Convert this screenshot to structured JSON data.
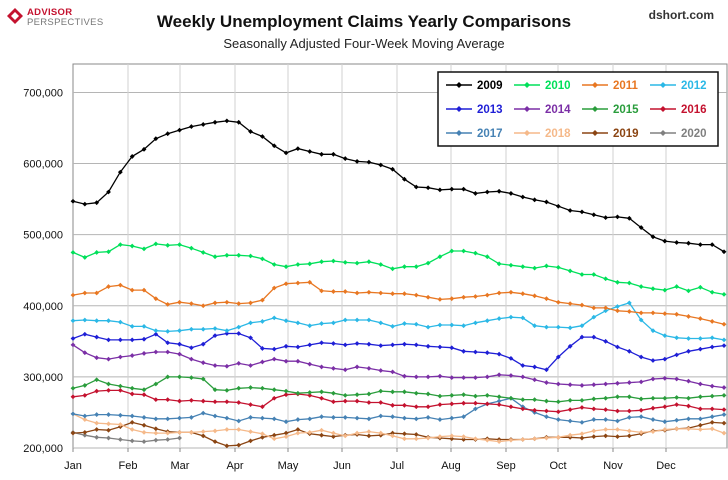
{
  "header": {
    "brand_line1": "ADVISOR",
    "brand_line2": "PERSPECTIVES",
    "site": "dshort.com"
  },
  "chart_data": {
    "type": "line",
    "title": "Weekly Unemployment Claims Yearly Comparisons",
    "subtitle": "Seasonally Adjusted Four-Week Moving Average",
    "xlabel": "",
    "ylabel": "",
    "x_ticks": [
      "Jan",
      "Feb",
      "Mar",
      "Apr",
      "May",
      "Jun",
      "Jul",
      "Aug",
      "Sep",
      "Oct",
      "Nov",
      "Dec"
    ],
    "ylim": [
      200000,
      740000
    ],
    "y_ticks": [
      200000,
      300000,
      400000,
      500000,
      600000,
      700000
    ],
    "y_tick_labels": [
      "200,000",
      "300,000",
      "400,000",
      "500,000",
      "600,000",
      "700,000"
    ],
    "grid": true,
    "legend_position": "top-right",
    "series": [
      {
        "name": "2009",
        "color": "#000000",
        "marker": "diamond",
        "values": [
          547000,
          543000,
          545000,
          560000,
          588000,
          610000,
          620000,
          635000,
          642000,
          647000,
          652000,
          655000,
          658000,
          660000,
          658000,
          645000,
          638000,
          625000,
          615000,
          621000,
          617000,
          613000,
          613000,
          607000,
          603000,
          602000,
          598000,
          592000,
          578000,
          567000,
          566000,
          563000,
          564000,
          564000,
          558000,
          560000,
          561000,
          558000,
          553000,
          549000,
          546000,
          540000,
          534000,
          532000,
          528000,
          524000,
          525000,
          523000,
          510000,
          497000,
          491000,
          489000,
          488000,
          486000,
          486000,
          476000
        ]
      },
      {
        "name": "2010",
        "color": "#00e05a",
        "marker": "diamond",
        "values": [
          475000,
          468000,
          475000,
          476000,
          486000,
          484000,
          480000,
          487000,
          485000,
          486000,
          481000,
          475000,
          469000,
          471000,
          471000,
          470000,
          466000,
          458000,
          455000,
          458000,
          459000,
          462000,
          463000,
          461000,
          460000,
          462000,
          458000,
          452000,
          455000,
          455000,
          460000,
          469000,
          477000,
          477000,
          474000,
          469000,
          459000,
          457000,
          455000,
          453000,
          456000,
          454000,
          449000,
          444000,
          444000,
          438000,
          433000,
          432000,
          427000,
          424000,
          422000,
          427000,
          421000,
          426000,
          419000,
          416000
        ]
      },
      {
        "name": "2011",
        "color": "#e87722",
        "marker": "diamond",
        "values": [
          415000,
          418000,
          418000,
          427000,
          429000,
          422000,
          422000,
          410000,
          402000,
          405000,
          403000,
          400000,
          404000,
          405000,
          403000,
          404000,
          408000,
          425000,
          431000,
          432000,
          433000,
          421000,
          420000,
          420000,
          418000,
          419000,
          418000,
          417000,
          417000,
          415000,
          412000,
          409000,
          410000,
          412000,
          413000,
          415000,
          418000,
          419000,
          417000,
          414000,
          410000,
          405000,
          403000,
          401000,
          397000,
          397000,
          393000,
          392000,
          390000,
          390000,
          389000,
          388000,
          385000,
          382000,
          378000,
          374000
        ]
      },
      {
        "name": "2012",
        "color": "#2bb8e6",
        "marker": "diamond",
        "values": [
          379000,
          380000,
          379000,
          379000,
          377000,
          371000,
          371000,
          365000,
          364000,
          365000,
          367000,
          367000,
          368000,
          365000,
          370000,
          376000,
          378000,
          383000,
          379000,
          376000,
          372000,
          375000,
          376000,
          380000,
          380000,
          380000,
          376000,
          371000,
          375000,
          374000,
          370000,
          373000,
          373000,
          372000,
          376000,
          379000,
          382000,
          384000,
          383000,
          372000,
          370000,
          370000,
          369000,
          372000,
          384000,
          393000,
          399000,
          404000,
          380000,
          365000,
          358000,
          355000,
          354000,
          354000,
          355000,
          352000
        ]
      },
      {
        "name": "2013",
        "color": "#1f1fd6",
        "marker": "diamond",
        "values": [
          354000,
          360000,
          356000,
          352000,
          352000,
          352000,
          353000,
          360000,
          348000,
          346000,
          341000,
          346000,
          358000,
          361000,
          361000,
          355000,
          340000,
          339000,
          343000,
          342000,
          345000,
          348000,
          347000,
          345000,
          347000,
          346000,
          344000,
          345000,
          346000,
          345000,
          343000,
          342000,
          341000,
          336000,
          335000,
          334000,
          332000,
          326000,
          316000,
          314000,
          310000,
          328000,
          343000,
          356000,
          356000,
          350000,
          342000,
          336000,
          328000,
          323000,
          325000,
          331000,
          336000,
          339000,
          342000,
          344000
        ]
      },
      {
        "name": "2014",
        "color": "#7b2fa6",
        "marker": "diamond",
        "values": [
          345000,
          334000,
          327000,
          325000,
          328000,
          330000,
          333000,
          335000,
          335000,
          332000,
          325000,
          320000,
          316000,
          315000,
          319000,
          316000,
          321000,
          325000,
          322000,
          322000,
          318000,
          314000,
          312000,
          310000,
          314000,
          312000,
          309000,
          307000,
          301000,
          300000,
          300000,
          301000,
          299000,
          299000,
          299000,
          300000,
          303000,
          302000,
          300000,
          296000,
          292000,
          290000,
          289000,
          288000,
          289000,
          290000,
          291000,
          292000,
          293000,
          297000,
          298000,
          297000,
          294000,
          290000,
          287000,
          285000
        ]
      },
      {
        "name": "2015",
        "color": "#2a9d3c",
        "marker": "diamond",
        "values": [
          284000,
          288000,
          296000,
          290000,
          287000,
          284000,
          282000,
          290000,
          300000,
          300000,
          299000,
          297000,
          282000,
          281000,
          284000,
          285000,
          284000,
          282000,
          280000,
          277000,
          278000,
          279000,
          277000,
          274000,
          275000,
          276000,
          280000,
          279000,
          279000,
          277000,
          276000,
          273000,
          274000,
          275000,
          273000,
          274000,
          272000,
          270000,
          268000,
          268000,
          266000,
          265000,
          267000,
          267000,
          269000,
          270000,
          272000,
          272000,
          269000,
          270000,
          270000,
          271000,
          270000,
          272000,
          273000,
          274000
        ]
      },
      {
        "name": "2016",
        "color": "#c4122f",
        "marker": "diamond",
        "values": [
          272000,
          274000,
          280000,
          281000,
          281000,
          276000,
          275000,
          268000,
          268000,
          266000,
          267000,
          266000,
          265000,
          265000,
          264000,
          261000,
          258000,
          270000,
          275000,
          276000,
          274000,
          270000,
          265000,
          266000,
          266000,
          264000,
          264000,
          260000,
          260000,
          258000,
          258000,
          261000,
          262000,
          263000,
          263000,
          262000,
          261000,
          258000,
          255000,
          253000,
          252000,
          251000,
          254000,
          257000,
          255000,
          254000,
          252000,
          252000,
          253000,
          256000,
          258000,
          261000,
          259000,
          255000,
          255000,
          254000
        ]
      },
      {
        "name": "2017",
        "color": "#4682b4",
        "marker": "diamond",
        "values": [
          248000,
          245000,
          247000,
          247000,
          246000,
          245000,
          243000,
          241000,
          241000,
          242000,
          243000,
          249000,
          245000,
          242000,
          238000,
          243000,
          242000,
          241000,
          237000,
          240000,
          241000,
          244000,
          243000,
          243000,
          242000,
          241000,
          245000,
          244000,
          242000,
          241000,
          243000,
          240000,
          242000,
          244000,
          255000,
          262000,
          266000,
          270000,
          258000,
          250000,
          244000,
          240000,
          238000,
          236000,
          240000,
          240000,
          238000,
          243000,
          244000,
          240000,
          237000,
          239000,
          241000,
          241000,
          244000,
          247000
        ]
      },
      {
        "name": "2018",
        "color": "#f5b98a",
        "marker": "diamond",
        "values": [
          248000,
          240000,
          235000,
          234000,
          233000,
          226000,
          222000,
          221000,
          221000,
          222000,
          222000,
          223000,
          224000,
          226000,
          226000,
          223000,
          220000,
          213000,
          216000,
          221000,
          222000,
          225000,
          221000,
          217000,
          221000,
          223000,
          221000,
          217000,
          213000,
          213000,
          214000,
          216000,
          217000,
          216000,
          213000,
          211000,
          209000,
          211000,
          212000,
          213000,
          214000,
          215000,
          218000,
          220000,
          224000,
          226000,
          226000,
          224000,
          222000,
          223000,
          226000,
          227000,
          227000,
          226000,
          227000,
          221000
        ]
      },
      {
        "name": "2019",
        "color": "#8b4513",
        "marker": "diamond",
        "values": [
          221000,
          222000,
          226000,
          225000,
          230000,
          236000,
          232000,
          227000,
          223000,
          222000,
          222000,
          217000,
          209000,
          203000,
          204000,
          210000,
          215000,
          218000,
          221000,
          226000,
          220000,
          218000,
          216000,
          218000,
          219000,
          217000,
          218000,
          221000,
          220000,
          219000,
          215000,
          214000,
          213000,
          212000,
          212000,
          213000,
          212000,
          212000,
          212000,
          213000,
          215000,
          215000,
          215000,
          214000,
          216000,
          217000,
          216000,
          217000,
          220000,
          224000,
          225000,
          227000,
          228000,
          232000,
          236000,
          235000
        ]
      },
      {
        "name": "2020",
        "color": "#808080",
        "marker": "diamond",
        "values": [
          222000,
          218000,
          215000,
          214000,
          212000,
          210000,
          209000,
          211000,
          212000,
          214000
        ]
      }
    ]
  }
}
